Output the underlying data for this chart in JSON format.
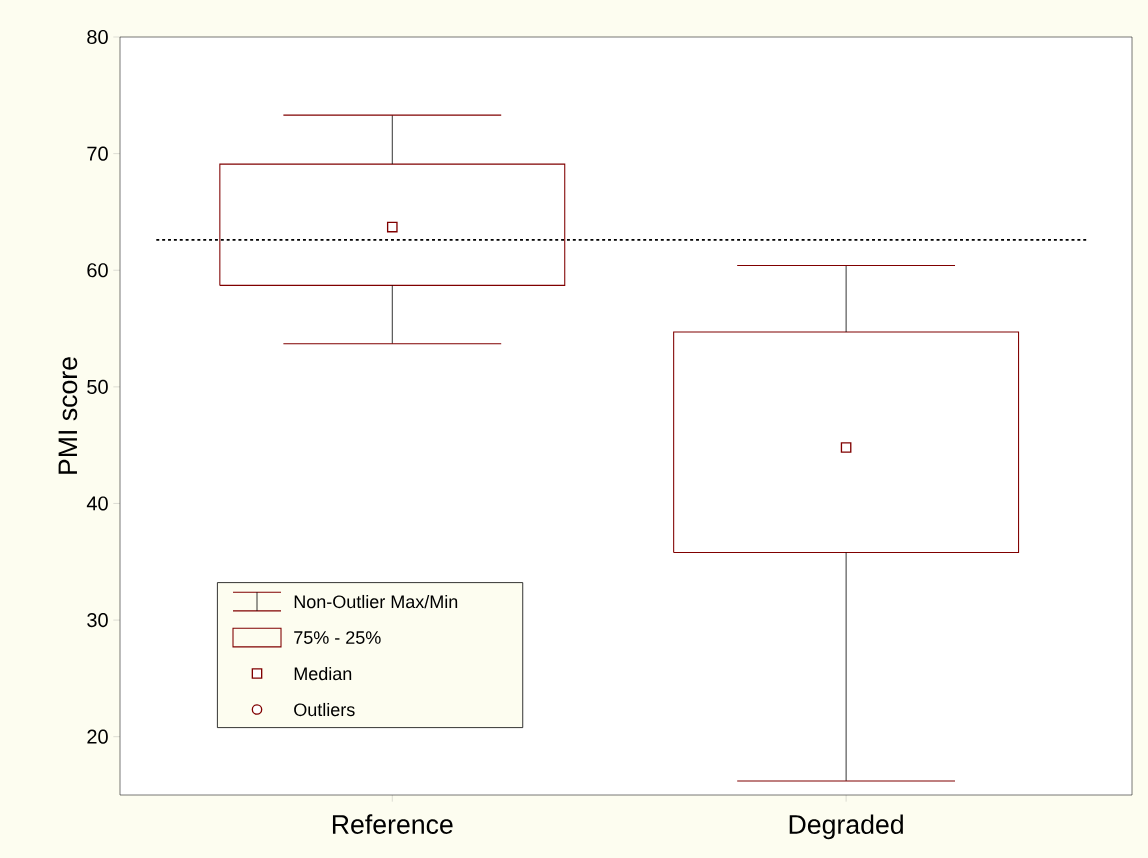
{
  "chart_data": {
    "type": "box",
    "ylabel": "PMI score",
    "categories": [
      "Reference",
      "Degraded"
    ],
    "series": [
      {
        "color": "#800000",
        "boxes": [
          {
            "low": 53.7,
            "q1": 58.7,
            "median": 63.7,
            "q3": 69.1,
            "high": 73.3
          },
          {
            "low": 16.2,
            "q1": 35.8,
            "median": 44.8,
            "q3": 54.7,
            "high": 60.4
          }
        ]
      }
    ],
    "ylim": [
      15,
      80
    ],
    "yticks": [
      20,
      30,
      40,
      50,
      60,
      70,
      80
    ],
    "marker": "square",
    "grid": false,
    "ref_lines": [
      {
        "axis": "y",
        "value": 62.6,
        "color": "#000000",
        "line_style": "dotted"
      }
    ],
    "annotations": [
      "Non-Outlier Max/Min",
      "75% - 25%",
      "Median",
      "Outliers"
    ]
  }
}
